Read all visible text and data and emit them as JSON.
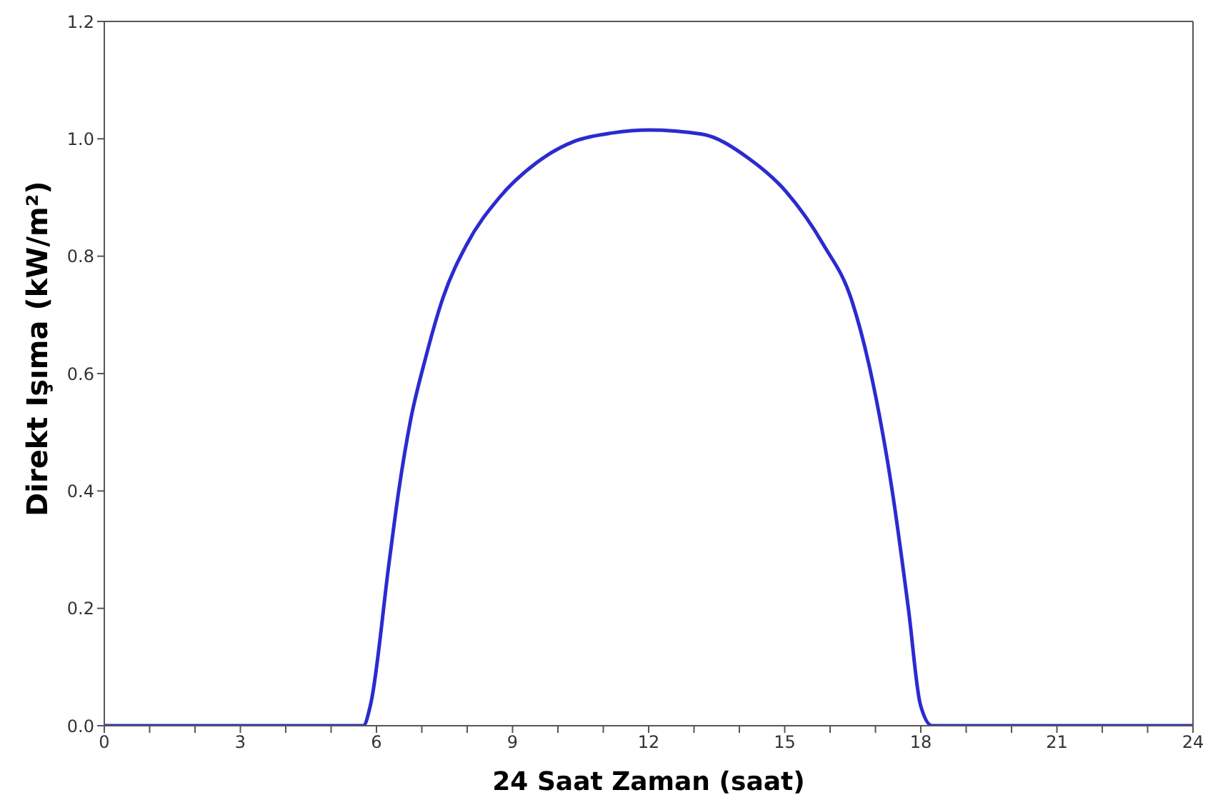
{
  "chart_data": {
    "type": "line",
    "xlabel": "24 Saat Zaman (saat)",
    "ylabel": "Direkt Işıma (kW/m²)",
    "x": [
      0,
      5.71,
      5.87,
      6.28,
      6.49,
      6.75,
      7.06,
      7.47,
      7.99,
      8.71,
      9.54,
      10.37,
      11.2,
      12,
      13.17,
      14.2,
      15.03,
      15.85,
      16.48,
      16.9,
      17.37,
      17.73,
      17.99,
      18.25,
      24
    ],
    "series": [
      {
        "color": "#2b2bd0",
        "values": [
          0,
          0,
          0.036,
          0.279,
          0.4,
          0.52,
          0.62,
          0.73,
          0.82,
          0.9,
          0.96,
          0.996,
          1.01,
          1.015,
          1.008,
          0.967,
          0.91,
          0.82,
          0.724,
          0.6,
          0.4,
          0.197,
          0.036,
          0,
          0
        ]
      }
    ],
    "xlim": [
      0,
      24
    ],
    "xticks": [
      0,
      {
        "value": 1,
        "label": null
      },
      {
        "value": 2,
        "label": null
      },
      3,
      {
        "value": 4,
        "label": null
      },
      {
        "value": 5,
        "label": null
      },
      6,
      {
        "value": 7,
        "label": null
      },
      {
        "value": 8,
        "label": null
      },
      9,
      {
        "value": 10,
        "label": null
      },
      {
        "value": 11,
        "label": null
      },
      12,
      {
        "value": 13,
        "label": null
      },
      {
        "value": 14,
        "label": null
      },
      15,
      {
        "value": 16,
        "label": null
      },
      {
        "value": 17,
        "label": null
      },
      18,
      {
        "value": 19,
        "label": null
      },
      {
        "value": 20,
        "label": null
      },
      21,
      {
        "value": 22,
        "label": null
      },
      {
        "value": 23,
        "label": null
      },
      24
    ],
    "ylim": [
      0,
      1.2
    ],
    "yticks": [
      {
        "value": 0,
        "label": "0.0"
      },
      {
        "value": 0.2,
        "label": "0.2"
      },
      {
        "value": 0.4,
        "label": "0.4"
      },
      {
        "value": 0.6,
        "label": "0.6"
      },
      {
        "value": 0.8,
        "label": "0.8"
      },
      {
        "value": 1,
        "label": "1.0"
      },
      {
        "value": 1.2,
        "label": "1.2"
      }
    ],
    "legend": false,
    "marker": "none",
    "line_style": "solid"
  }
}
